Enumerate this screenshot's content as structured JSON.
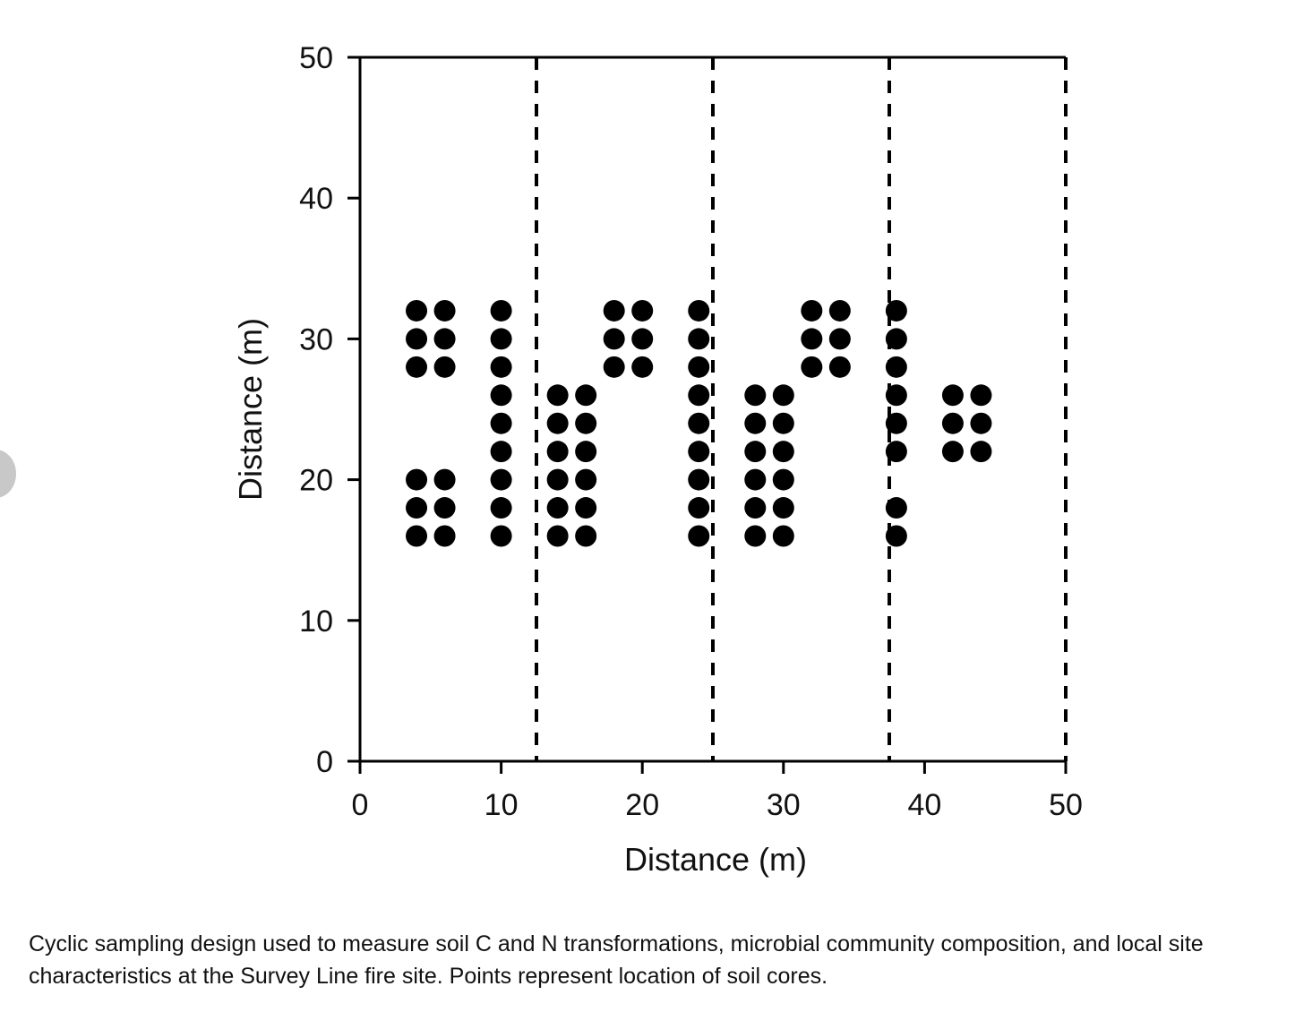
{
  "caption": "Cyclic sampling design used to measure soil C and N transformations, microbial community composition, and local site characteristics at the Survey Line fire site. Points represent location of soil cores.",
  "chart_data": {
    "type": "scatter",
    "title": "",
    "xlabel": "Distance (m)",
    "ylabel": "Distance (m)",
    "xlim": [
      0,
      50
    ],
    "ylim": [
      0,
      50
    ],
    "xticks": [
      0,
      10,
      20,
      30,
      40,
      50
    ],
    "yticks": [
      0,
      10,
      20,
      30,
      40,
      50
    ],
    "grid": false,
    "plot_boundaries": [
      12.5,
      25,
      37.5,
      50
    ],
    "series": [
      {
        "points": [
          [
            4,
            32
          ],
          [
            6,
            32
          ],
          [
            4,
            30
          ],
          [
            6,
            30
          ],
          [
            4,
            28
          ],
          [
            6,
            28
          ],
          [
            4,
            20
          ],
          [
            6,
            20
          ],
          [
            4,
            18
          ],
          [
            6,
            18
          ],
          [
            4,
            16
          ],
          [
            6,
            16
          ],
          [
            10,
            32
          ],
          [
            10,
            30
          ],
          [
            10,
            28
          ],
          [
            10,
            26
          ],
          [
            10,
            24
          ],
          [
            10,
            22
          ],
          [
            10,
            20
          ],
          [
            10,
            18
          ],
          [
            10,
            16
          ],
          [
            14,
            26
          ],
          [
            16,
            26
          ],
          [
            14,
            24
          ],
          [
            16,
            24
          ],
          [
            14,
            22
          ],
          [
            16,
            22
          ],
          [
            14,
            20
          ],
          [
            16,
            20
          ],
          [
            14,
            18
          ],
          [
            16,
            18
          ],
          [
            14,
            16
          ],
          [
            16,
            16
          ],
          [
            18,
            32
          ],
          [
            20,
            32
          ],
          [
            18,
            30
          ],
          [
            20,
            30
          ],
          [
            18,
            28
          ],
          [
            20,
            28
          ],
          [
            24,
            32
          ],
          [
            24,
            30
          ],
          [
            24,
            28
          ],
          [
            24,
            26
          ],
          [
            24,
            24
          ],
          [
            24,
            22
          ],
          [
            24,
            20
          ],
          [
            24,
            18
          ],
          [
            24,
            16
          ],
          [
            28,
            26
          ],
          [
            30,
            26
          ],
          [
            28,
            24
          ],
          [
            30,
            24
          ],
          [
            28,
            22
          ],
          [
            30,
            22
          ],
          [
            28,
            20
          ],
          [
            30,
            20
          ],
          [
            28,
            18
          ],
          [
            30,
            18
          ],
          [
            28,
            16
          ],
          [
            30,
            16
          ],
          [
            32,
            32
          ],
          [
            34,
            32
          ],
          [
            32,
            30
          ],
          [
            34,
            30
          ],
          [
            32,
            28
          ],
          [
            34,
            28
          ],
          [
            38,
            32
          ],
          [
            38,
            30
          ],
          [
            38,
            28
          ],
          [
            38,
            26
          ],
          [
            38,
            24
          ],
          [
            38,
            22
          ],
          [
            38,
            18
          ],
          [
            38,
            16
          ],
          [
            42,
            26
          ],
          [
            44,
            26
          ],
          [
            42,
            24
          ],
          [
            44,
            24
          ],
          [
            42,
            22
          ],
          [
            44,
            22
          ]
        ]
      }
    ],
    "colors": {
      "points": "#000000",
      "axes": "#000000"
    }
  }
}
